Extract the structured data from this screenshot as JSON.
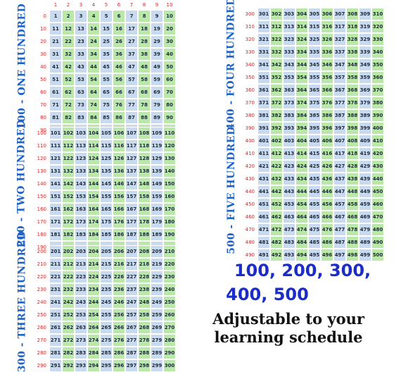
{
  "panels": [
    {
      "title": "100 - ONE HUNDRED",
      "start": 1
    },
    {
      "title": "200 - TWO HUNDRED",
      "start": 101
    },
    {
      "title": "300 - THREE HUNDRED",
      "start": 201
    },
    {
      "title": "400 - FOUR HUNDRED",
      "start": 301
    },
    {
      "title": "500 - FIVE HUNDRED",
      "start": 401
    }
  ],
  "column_labels": [
    "1",
    "2",
    "3",
    "4",
    "5",
    "6",
    "7",
    "8",
    "9",
    "10"
  ],
  "row_label_zero": "0",
  "headline_1": "100, 200, 300,",
  "headline_2": "400, 500",
  "subline_1": "Adjustable to your",
  "subline_2": "learning schedule",
  "colors": {
    "green": "#b9e8a8",
    "blue": "#c9daf0",
    "title": "#1e63c8",
    "headline": "#1b2dc9",
    "label": "#d02a2a"
  }
}
